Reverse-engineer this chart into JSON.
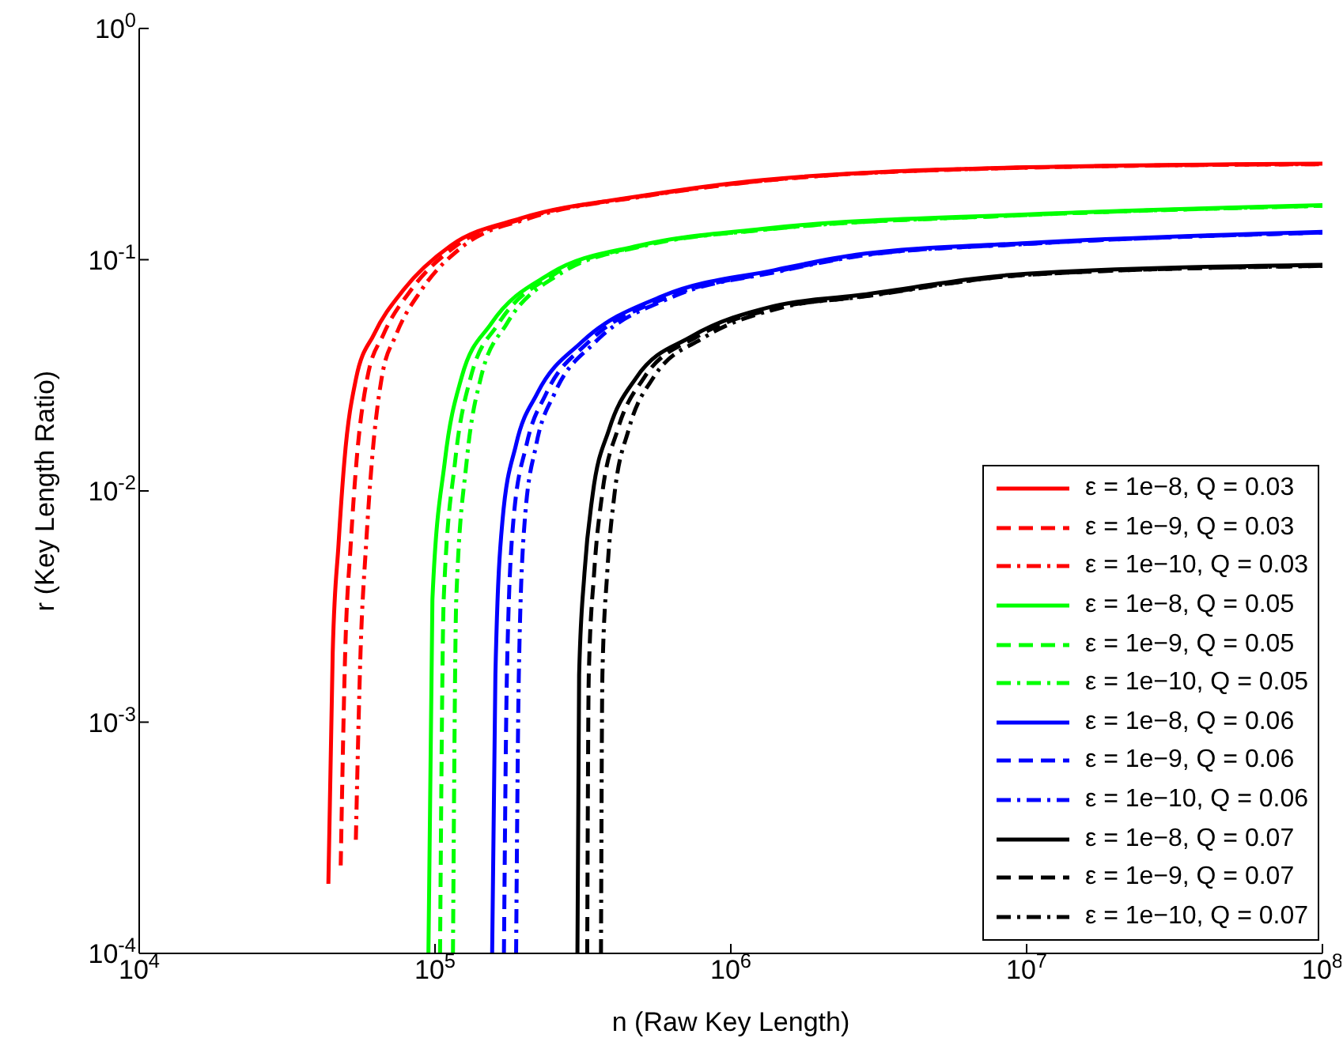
{
  "chart_data": {
    "type": "line",
    "xlabel": "n  (Raw Key Length)",
    "ylabel": "r  (Key Length Ratio)",
    "log": "xy",
    "xlim": [
      10000,
      100000000
    ],
    "ylim": [
      0.0001,
      1
    ],
    "xticks": [
      {
        "value": 10000,
        "label": "10$^{4}$"
      },
      {
        "value": 100000,
        "label": "10$^{5}$"
      },
      {
        "value": 1000000,
        "label": "10$^{6}$"
      },
      {
        "value": 10000000,
        "label": "10$^{7}$"
      },
      {
        "value": 100000000,
        "label": "10$^{8}$"
      }
    ],
    "yticks": [
      {
        "value": 0.0001,
        "label": "10$^{-4}$"
      },
      {
        "value": 0.001,
        "label": "10$^{-3}$"
      },
      {
        "value": 0.01,
        "label": "10$^{-2}$"
      },
      {
        "value": 0.1,
        "label": "10$^{-1}$"
      },
      {
        "value": 1,
        "label": "10$^{0}$"
      }
    ],
    "grid": false,
    "legend": "bottom right",
    "marker": "none",
    "series": [
      {
        "name": "ε = 1e−8, Q = 0.03",
        "color": "#ff0000",
        "line_style": "solid",
        "x": [
          43600,
          45100,
          47200,
          49400,
          54100,
          62200,
          78200,
          113000,
          195000,
          489000,
          1280000,
          10000000,
          100000000
        ],
        "values": [
          0.0002,
          0.002,
          0.0059,
          0.0135,
          0.0307,
          0.0476,
          0.074,
          0.115,
          0.151,
          0.188,
          0.221,
          0.251,
          0.26
        ]
      },
      {
        "name": "ε = 1e−9, Q = 0.03",
        "color": "#ff0000",
        "line_style": "dashed",
        "x": [
          48000,
          49700,
          51900,
          54300,
          59000,
          67000,
          83000,
          118000,
          200000,
          500000,
          1300000,
          10000000,
          100000000
        ],
        "values": [
          0.00024,
          0.002,
          0.0059,
          0.0135,
          0.0307,
          0.0476,
          0.074,
          0.115,
          0.151,
          0.188,
          0.22,
          0.25,
          0.259
        ]
      },
      {
        "name": "ε = 1e−10, Q = 0.03",
        "color": "#ff0000",
        "line_style": "dashdot",
        "x": [
          54000,
          56000,
          58500,
          61200,
          66000,
          74000,
          90000,
          125000,
          208000,
          510000,
          1320000,
          10000000,
          100000000
        ],
        "values": [
          0.00031,
          0.002,
          0.0059,
          0.0135,
          0.0307,
          0.0476,
          0.074,
          0.115,
          0.151,
          0.188,
          0.22,
          0.25,
          0.259
        ]
      },
      {
        "name": "ε = 1e−8, Q = 0.05",
        "color": "#00ff00",
        "line_style": "solid",
        "x": [
          95000,
          98000,
          108000,
          123000,
          155000,
          245000,
          488000,
          1280000,
          10000000,
          100000000
        ],
        "values": [
          0.0001,
          0.0034,
          0.0135,
          0.031,
          0.053,
          0.087,
          0.115,
          0.136,
          0.157,
          0.172
        ]
      },
      {
        "name": "ε = 1e−9, Q = 0.05",
        "color": "#00ff00",
        "line_style": "dashed",
        "x": [
          104000,
          107000,
          117000,
          132000,
          164000,
          255000,
          500000,
          1300000,
          10000000,
          100000000
        ],
        "values": [
          0.0001,
          0.0034,
          0.0135,
          0.031,
          0.053,
          0.087,
          0.115,
          0.135,
          0.156,
          0.171
        ]
      },
      {
        "name": "ε = 1e−10, Q = 0.05",
        "color": "#00ff00",
        "line_style": "dashdot",
        "x": [
          115000,
          118000,
          128000,
          143000,
          175000,
          265000,
          512000,
          1320000,
          10000000,
          100000000
        ],
        "values": [
          0.0001,
          0.0034,
          0.0135,
          0.031,
          0.053,
          0.087,
          0.115,
          0.135,
          0.156,
          0.171
        ]
      },
      {
        "name": "ε = 1e−8, Q = 0.06",
        "color": "#0000ff",
        "line_style": "solid",
        "x": [
          156000,
          160000,
          169000,
          188000,
          222000,
          313000,
          594000,
          1400000,
          2650000,
          10000000,
          100000000
        ],
        "values": [
          0.0001,
          0.0016,
          0.0074,
          0.0159,
          0.0265,
          0.044,
          0.07,
          0.09,
          0.105,
          0.118,
          0.132
        ]
      },
      {
        "name": "ε = 1e−9, Q = 0.06",
        "color": "#0000ff",
        "line_style": "dashed",
        "x": [
          171000,
          175000,
          184000,
          204000,
          238000,
          330000,
          615000,
          1430000,
          2700000,
          10000000,
          100000000
        ],
        "values": [
          0.0001,
          0.0016,
          0.0074,
          0.0159,
          0.0265,
          0.044,
          0.069,
          0.089,
          0.104,
          0.117,
          0.131
        ]
      },
      {
        "name": "ε = 1e−10, Q = 0.06",
        "color": "#0000ff",
        "line_style": "dashdot",
        "x": [
          188000,
          192000,
          201000,
          220000,
          254000,
          348000,
          635000,
          1460000,
          2750000,
          10000000,
          100000000
        ],
        "values": [
          0.0001,
          0.0016,
          0.0074,
          0.0159,
          0.0265,
          0.044,
          0.069,
          0.089,
          0.104,
          0.117,
          0.131
        ]
      },
      {
        "name": "ε = 1e−8, Q = 0.07",
        "color": "#000000",
        "line_style": "solid",
        "x": [
          303000,
          307000,
          320000,
          341000,
          388000,
          480000,
          736000,
          1400000,
          2650000,
          10000000,
          100000000
        ],
        "values": [
          0.0001,
          0.0016,
          0.0044,
          0.0096,
          0.0185,
          0.031,
          0.0465,
          0.063,
          0.07,
          0.087,
          0.095
        ]
      },
      {
        "name": "ε = 1e−9, Q = 0.07",
        "color": "#000000",
        "line_style": "dashed",
        "x": [
          327000,
          331000,
          345000,
          367000,
          415000,
          510000,
          770000,
          1440000,
          2700000,
          10000000,
          100000000
        ],
        "values": [
          0.0001,
          0.0016,
          0.0044,
          0.0096,
          0.0185,
          0.031,
          0.0465,
          0.062,
          0.069,
          0.086,
          0.094
        ]
      },
      {
        "name": "ε = 1e−10, Q = 0.07",
        "color": "#000000",
        "line_style": "dashdot",
        "x": [
          364000,
          368000,
          382000,
          404000,
          452000,
          548000,
          810000,
          1480000,
          2750000,
          10000000,
          100000000
        ],
        "values": [
          0.0001,
          0.0016,
          0.0044,
          0.0096,
          0.0185,
          0.031,
          0.046,
          0.062,
          0.069,
          0.086,
          0.094
        ]
      }
    ]
  }
}
